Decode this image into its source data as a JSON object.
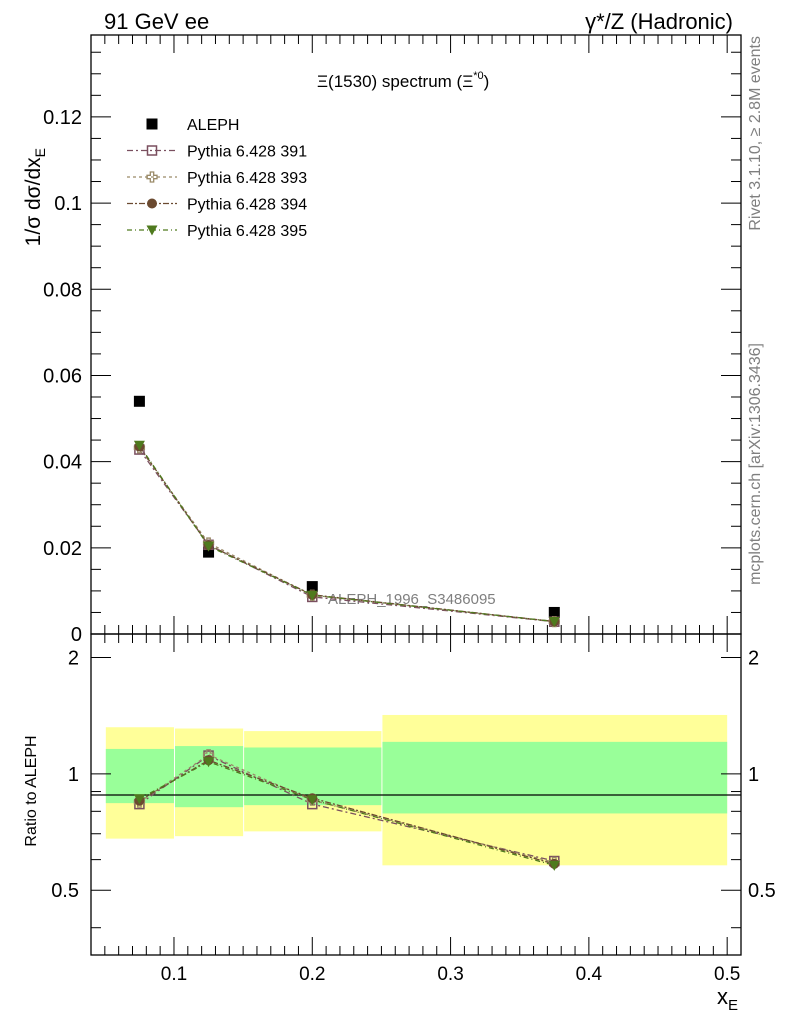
{
  "header": {
    "left": "91 GeV ee",
    "right": "γ*/Z (Hadronic)"
  },
  "side_text": {
    "rivet": "Rivet 3.1.10, ≥ 2.8M events",
    "mcplots": "mcplots.cern.ch [arXiv:1306.3436]"
  },
  "chart_data": {
    "type": "scatter",
    "title": "Ξ(1530) spectrum (Ξ*0)",
    "title_main": "Ξ(1530) spectrum (Ξ",
    "title_sup": "*0",
    "title_close": ")",
    "watermark": "ALEPH_1996_S3486095",
    "xlabel": "x",
    "xlabel_sub": "E",
    "ylabel": "1/σ dσ/dx",
    "ylabel_sub": "E",
    "ratio_ylabel": "Ratio to ALEPH",
    "xlim": [
      0.04,
      0.51
    ],
    "ylim": [
      0,
      0.139
    ],
    "ratio_ylim": [
      0.34,
      2.3
    ],
    "x_ticks": [
      "0.1",
      "0.2",
      "0.3",
      "0.4",
      "0.5"
    ],
    "y_ticks": [
      "0",
      "0.02",
      "0.04",
      "0.06",
      "0.08",
      "0.1",
      "0.12"
    ],
    "ratio_ticks": [
      "0.5",
      "1",
      "2"
    ],
    "x": [
      0.075,
      0.125,
      0.2,
      0.375
    ],
    "bin_edges": [
      [
        0.05,
        0.1
      ],
      [
        0.1,
        0.15
      ],
      [
        0.15,
        0.25
      ],
      [
        0.25,
        0.5
      ]
    ],
    "data_series": {
      "name": "ALEPH",
      "values": [
        0.054,
        0.019,
        0.011,
        0.005
      ]
    },
    "band_inner": [
      0.16,
      0.18,
      0.17,
      0.21
    ],
    "band_outer": [
      0.32,
      0.31,
      0.29,
      0.42
    ],
    "series": [
      {
        "name": "Pythia 6.428 391",
        "marker": "open-square",
        "color": "#7a4f5f",
        "values": [
          0.0428,
          0.0207,
          0.0086,
          0.00285
        ],
        "ratio": [
          0.835,
          1.115,
          0.835,
          0.595
        ]
      },
      {
        "name": "Pythia 6.428 393",
        "marker": "open-cross",
        "color": "#9a8a68",
        "values": [
          0.0432,
          0.0211,
          0.009,
          0.00288
        ],
        "ratio": [
          0.845,
          1.12,
          0.855,
          0.59
        ]
      },
      {
        "name": "Pythia 6.428 394",
        "marker": "filled-circle",
        "color": "#6b4a30",
        "values": [
          0.0435,
          0.0206,
          0.0091,
          0.0029
        ],
        "ratio": [
          0.852,
          1.085,
          0.865,
          0.585
        ]
      },
      {
        "name": "Pythia 6.428 395",
        "marker": "filled-triangle",
        "color": "#4f7a1e",
        "values": [
          0.0438,
          0.0204,
          0.009,
          0.00291
        ],
        "ratio": [
          0.862,
          1.075,
          0.857,
          0.58
        ]
      }
    ],
    "legend_position": "top-left",
    "band_colors": {
      "inner": "#99ff99",
      "outer": "#ffff99"
    }
  }
}
